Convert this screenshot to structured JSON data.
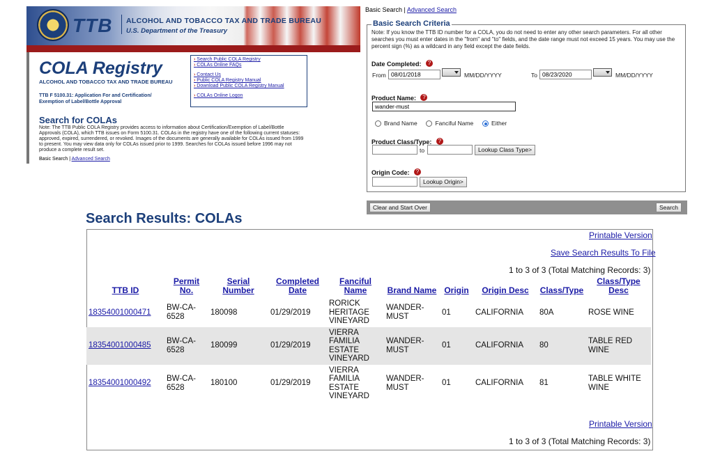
{
  "banner": {
    "logo": "TTB",
    "agency_name": "ALCOHOL AND TOBACCO TAX AND TRADE BUREAU",
    "department": "U.S. Department of the Treasury"
  },
  "left_panel": {
    "title": "COLA Registry",
    "subtitle": "ALCOHOL AND TOBACCO TAX AND TRADE BUREAU",
    "form_text": "TTB F 5100.31: Application For and Certification/ Exemption of Label/Bottle Approval",
    "links": [
      "Search Public COLA Registry",
      "COLAs Online FAQs",
      "Contact Us",
      "Public COLA Registry Manual",
      "Download Public COLA Registry Manual",
      "COLAs Online Logon"
    ],
    "search_heading": "Search for COLAs",
    "note": "Note: The TTB Public COLA Registry provides access to information about Certification/Exemption of Label/Bottle Approvals (COLA), which TTB issues on Form 5100.31. COLAs in the registry have one of the following current statuses: approved, expired, surrendered, or revoked. Images of the documents are generally available for COLAs issued from 1999 to present. You may view data only for COLAs issued prior to 1999. Searches for COLAs issued before 1996 may not produce a complete result set.",
    "nav_basic": "Basic Search",
    "nav_sep": "|",
    "nav_advanced": "Advanced Search"
  },
  "search": {
    "nav_basic": "Basic Search",
    "nav_sep": "|",
    "nav_advanced": "Advanced Search",
    "legend": "Basic Search Criteria",
    "note": "Note: If you know the TTB ID number for a COLA, you do not need to enter any other search parameters. For all other searches you must enter dates in the \"from\" and \"to\" fields, and the date range must not exceed 15 years. You may use the percent sign (%) as a wildcard in any field except the date fields.",
    "date_label": "Date Completed:",
    "from_label": "From",
    "from_value": "08/01/2018",
    "to_label": "To",
    "to_value": "08/23/2020",
    "date_format": "MM/DD/YYYY",
    "product_name_label": "Product Name:",
    "product_name_value": "wander-must",
    "radio_brand": "Brand Name",
    "radio_fanciful": "Fanciful Name",
    "radio_either": "Either",
    "selected_radio": "Either",
    "class_label": "Product Class/Type:",
    "class_to": "to",
    "lookup_class": "Lookup Class Type>",
    "origin_label": "Origin Code:",
    "lookup_origin": "Lookup Origin>",
    "clear_button": "Clear and Start Over",
    "search_button": "Search",
    "help_glyph": "?"
  },
  "results": {
    "title": "Search Results: COLAs",
    "printable": "Printable Version",
    "save": "Save Search Results To File",
    "count": "1 to 3 of 3 (Total Matching Records: 3)",
    "columns": [
      "TTB ID",
      "Permit No.",
      "Serial Number",
      "Completed Date",
      "Fanciful Name",
      "Brand Name",
      "Origin",
      "Origin Desc",
      "Class/Type",
      "Class/Type Desc"
    ],
    "rows": [
      {
        "ttb_id": "18354001000471",
        "permit": "BW-CA-6528",
        "serial": "180098",
        "date": "01/29/2019",
        "fanciful": "RORICK HERITAGE VINEYARD",
        "brand": "WANDER-MUST",
        "origin": "01",
        "origin_desc": "CALIFORNIA",
        "class": "80A",
        "class_desc": "ROSE WINE"
      },
      {
        "ttb_id": "18354001000485",
        "permit": "BW-CA-6528",
        "serial": "180099",
        "date": "01/29/2019",
        "fanciful": "VIERRA FAMILIA ESTATE VINEYARD",
        "brand": "WANDER-MUST",
        "origin": "01",
        "origin_desc": "CALIFORNIA",
        "class": "80",
        "class_desc": "TABLE RED WINE"
      },
      {
        "ttb_id": "18354001000492",
        "permit": "BW-CA-6528",
        "serial": "180100",
        "date": "01/29/2019",
        "fanciful": "VIERRA FAMILIA ESTATE VINEYARD",
        "brand": "WANDER-MUST",
        "origin": "01",
        "origin_desc": "CALIFORNIA",
        "class": "81",
        "class_desc": "TABLE WHITE WINE"
      }
    ]
  }
}
